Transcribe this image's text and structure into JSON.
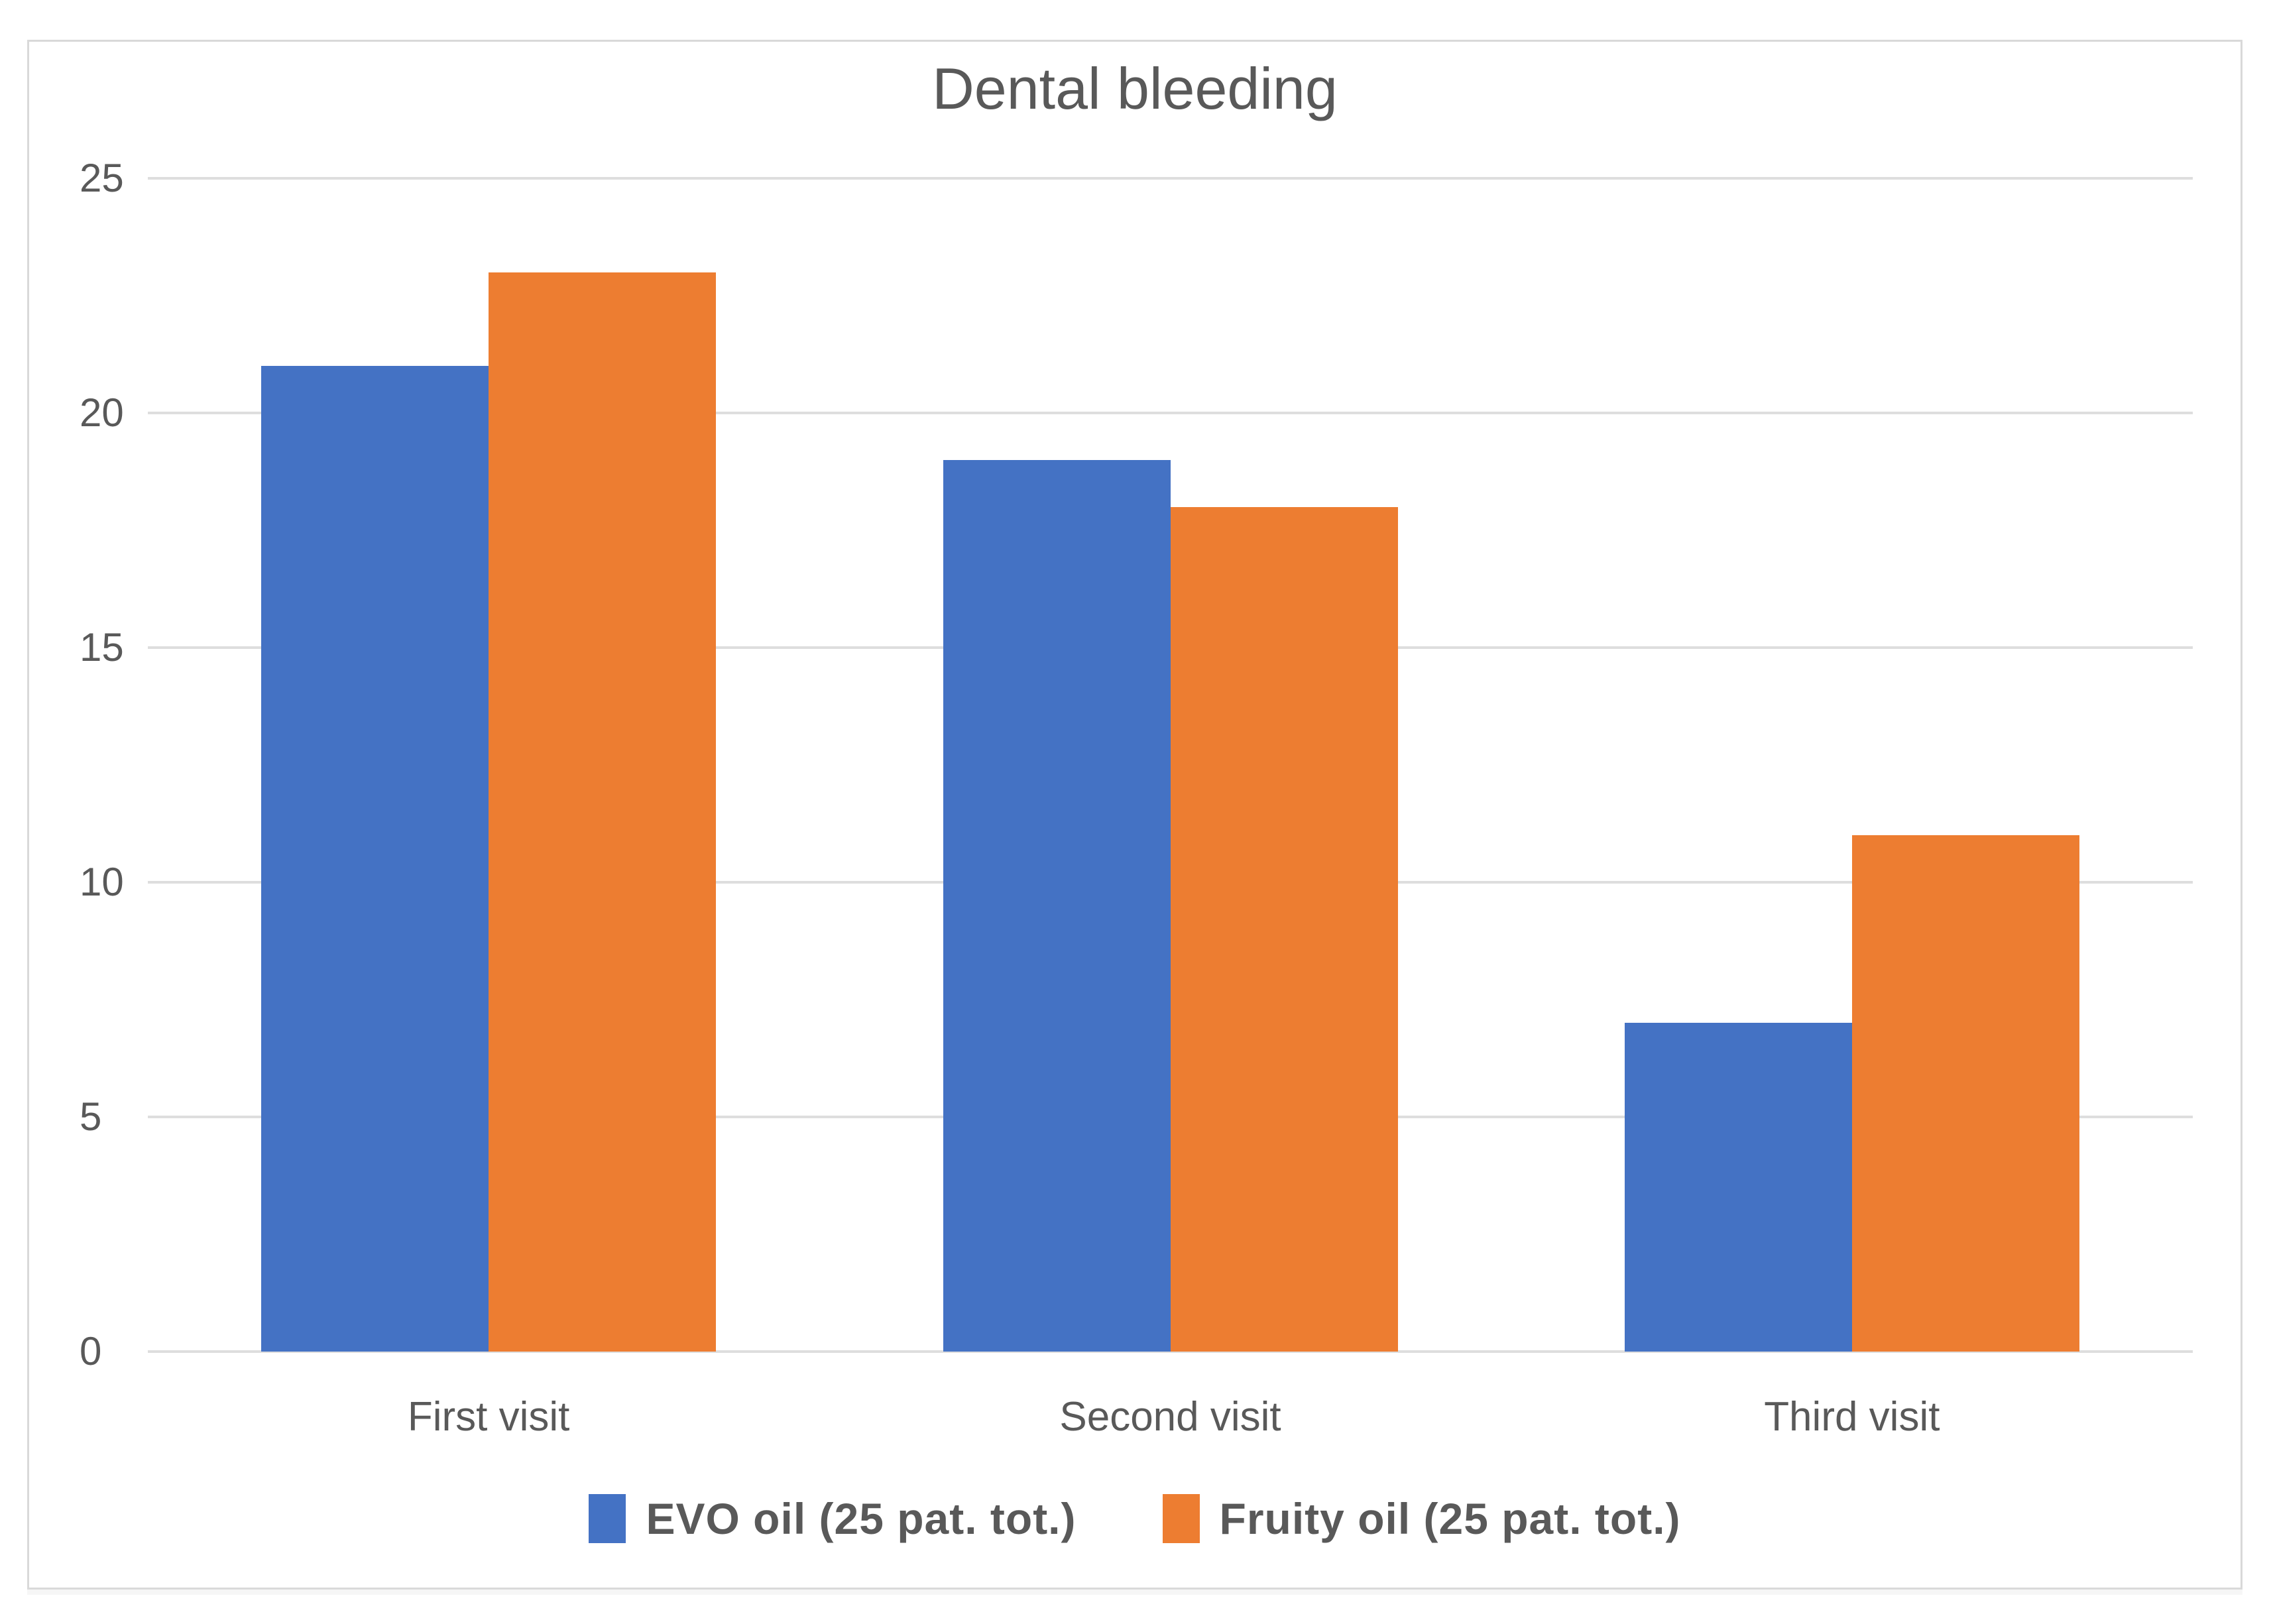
{
  "chart_data": {
    "type": "bar",
    "title": "Dental bleeding",
    "categories": [
      "First visit",
      "Second visit",
      "Third visit"
    ],
    "series": [
      {
        "name": "EVO oil (25 pat. tot.)",
        "color": "#4472C4",
        "values": [
          21,
          19,
          7
        ]
      },
      {
        "name": "Fruity oil (25 pat. tot.)",
        "color": "#ED7D31",
        "values": [
          23,
          18,
          11
        ]
      }
    ],
    "y_axis": {
      "min": 0,
      "max": 25,
      "tick_step": 5,
      "ticks": [
        0,
        5,
        10,
        15,
        20,
        25
      ]
    },
    "grid": true,
    "legend_position": "bottom",
    "colors": {
      "series_blue": "#4472C4",
      "series_orange": "#ED7D31",
      "title_text": "#595959",
      "axis_text": "#595959",
      "gridline": "#DEDEDE",
      "panel_border": "#D9D9D9",
      "background": "#FFFFFF"
    }
  }
}
